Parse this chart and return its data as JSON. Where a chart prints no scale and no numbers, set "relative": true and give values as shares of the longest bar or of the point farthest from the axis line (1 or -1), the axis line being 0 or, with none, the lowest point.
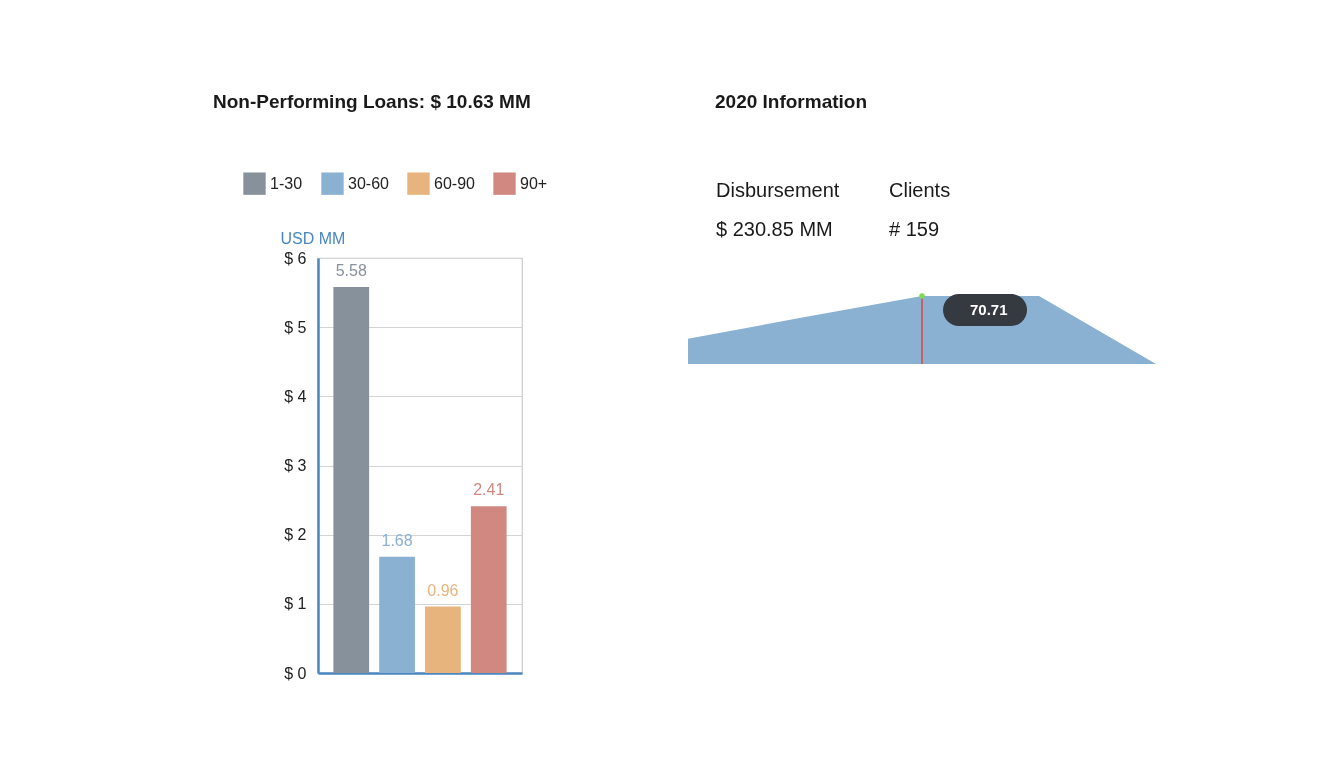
{
  "chart_data": [
    {
      "type": "bar",
      "title": "Non-Performing Loans: $ 10.63 MM",
      "ylabel": "USD MM",
      "categories": [
        null
      ],
      "series": [
        {
          "name": "1-30",
          "color": "#87919c",
          "values": [
            5.58
          ]
        },
        {
          "name": "30-60",
          "color": "#8ab0d2",
          "values": [
            1.68
          ]
        },
        {
          "name": "60-90",
          "color": "#e8b47e",
          "values": [
            0.96
          ]
        },
        {
          "name": "90+",
          "color": "#d08880",
          "values": [
            2.41
          ]
        }
      ],
      "ylim": [
        0,
        6
      ],
      "yticks": [
        {
          "value": 0,
          "label": "$ 0"
        },
        {
          "value": 1,
          "label": "$ 1"
        },
        {
          "value": 2,
          "label": "$ 2"
        },
        {
          "value": 3,
          "label": "$ 3"
        },
        {
          "value": 4,
          "label": "$ 4"
        },
        {
          "value": 5,
          "label": "$ 5"
        },
        {
          "value": 6,
          "label": "$ 6"
        }
      ],
      "grid": "y",
      "legend": "top",
      "data_labels": true,
      "tick_labels": "y"
    },
    {
      "type": "area",
      "title": "2020 Information",
      "annotations": [
        "Disbursement",
        "$ 230.85 MM",
        "Clients",
        "# 159",
        {
          "text": "70.71",
          "y": 1
        }
      ],
      "categories": [
        null,
        null,
        null,
        null,
        null
      ],
      "values": [
        0.37,
        0.69,
        1,
        1,
        0
      ],
      "relative": true,
      "color": "#8ab0d2",
      "tick_labels": false
    }
  ]
}
